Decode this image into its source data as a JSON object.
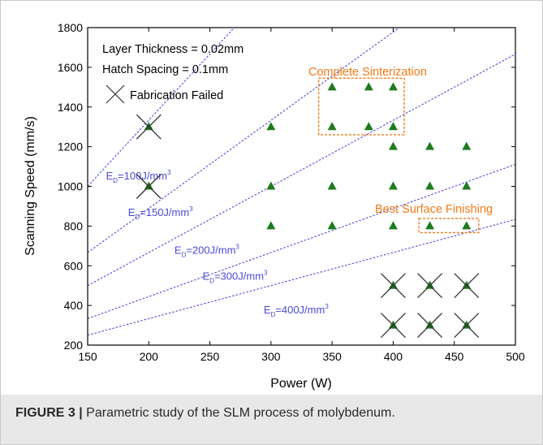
{
  "chart_data": {
    "type": "scatter",
    "xlabel": "Power (W)",
    "ylabel": "Scanning Speed (mm/s)",
    "xlim": [
      150,
      500
    ],
    "ylim": [
      200,
      1800
    ],
    "xticks": [
      150,
      200,
      250,
      300,
      350,
      400,
      450,
      500
    ],
    "yticks": [
      200,
      400,
      600,
      800,
      1000,
      1200,
      1400,
      1600,
      1800
    ],
    "grid": false,
    "points": [
      {
        "x": 300,
        "y": 1300
      },
      {
        "x": 350,
        "y": 1500
      },
      {
        "x": 380,
        "y": 1500
      },
      {
        "x": 400,
        "y": 1500
      },
      {
        "x": 350,
        "y": 1300
      },
      {
        "x": 380,
        "y": 1300
      },
      {
        "x": 400,
        "y": 1300
      },
      {
        "x": 400,
        "y": 1200
      },
      {
        "x": 430,
        "y": 1200
      },
      {
        "x": 460,
        "y": 1200
      },
      {
        "x": 300,
        "y": 1000
      },
      {
        "x": 350,
        "y": 1000
      },
      {
        "x": 400,
        "y": 1000
      },
      {
        "x": 430,
        "y": 1000
      },
      {
        "x": 460,
        "y": 1000
      },
      {
        "x": 300,
        "y": 800
      },
      {
        "x": 350,
        "y": 800
      },
      {
        "x": 400,
        "y": 800
      },
      {
        "x": 430,
        "y": 800
      },
      {
        "x": 460,
        "y": 800
      },
      {
        "x": 200,
        "y": 1300
      },
      {
        "x": 200,
        "y": 1000
      },
      {
        "x": 400,
        "y": 500
      },
      {
        "x": 430,
        "y": 500
      },
      {
        "x": 460,
        "y": 500
      },
      {
        "x": 400,
        "y": 300
      },
      {
        "x": 430,
        "y": 300
      },
      {
        "x": 460,
        "y": 300
      }
    ],
    "failed_points": [
      {
        "x": 200,
        "y": 1300
      },
      {
        "x": 200,
        "y": 1000
      },
      {
        "x": 400,
        "y": 500
      },
      {
        "x": 430,
        "y": 500
      },
      {
        "x": 460,
        "y": 500
      },
      {
        "x": 400,
        "y": 300
      },
      {
        "x": 430,
        "y": 300
      },
      {
        "x": 460,
        "y": 300
      }
    ],
    "energy_lines": [
      {
        "label": "E_D=100J/mm^3",
        "text_base": "E",
        "text_sub": "D",
        "text_main": "=100J/mm",
        "text_sup": "3",
        "slope": 6.667,
        "at": [
          165,
          1035
        ]
      },
      {
        "label": "E_D=150J/mm^3",
        "text_base": "E",
        "text_sub": "D",
        "text_main": "=150J/mm",
        "text_sup": "3",
        "slope": 4.444,
        "at": [
          183,
          850
        ]
      },
      {
        "label": "E_D=200J/mm^3",
        "text_base": "E",
        "text_sub": "D",
        "text_main": "=200J/mm",
        "text_sup": "3",
        "slope": 3.333,
        "at": [
          221,
          660
        ]
      },
      {
        "label": "E_D=300J/mm^3",
        "text_base": "E",
        "text_sub": "D",
        "text_main": "=300J/mm",
        "text_sup": "3",
        "slope": 2.222,
        "at": [
          244,
          530
        ]
      },
      {
        "label": "E_D=400J/mm^3",
        "text_base": "E",
        "text_sub": "D",
        "text_main": "=400J/mm",
        "text_sup": "3",
        "slope": 1.667,
        "at": [
          294,
          360
        ]
      }
    ],
    "annotations": {
      "layer_thickness": "Layer Thickness = 0.02mm",
      "hatch_spacing": "Hatch Spacing = 0.1mm",
      "fabrication_failed": "Fabrication Failed",
      "complete_sinterization": "Complete Sinterization",
      "best_surface_finishing": "Best Surface Finishing"
    },
    "highlight_boxes": [
      {
        "name": "complete-sinterization-box",
        "x": [
          339,
          409
        ],
        "y": [
          1260,
          1545
        ]
      },
      {
        "name": "best-surface-box",
        "x": [
          421,
          470
        ],
        "y": [
          767,
          838
        ]
      }
    ],
    "colors": {
      "marker": "#1e7a1e",
      "energy_line": "#4a4ad8",
      "highlight": "#f07a18",
      "axis": "#000000"
    }
  },
  "caption": {
    "label": "FIGURE 3 |",
    "text": " Parametric study of the SLM process of molybdenum."
  }
}
